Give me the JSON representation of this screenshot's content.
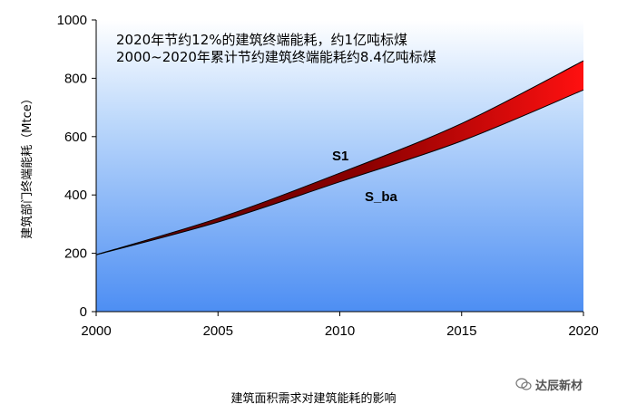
{
  "chart_data": {
    "type": "area",
    "title": "",
    "xlabel": "",
    "ylabel": "建筑部门终端能耗（Mtce）",
    "x": [
      2000,
      2005,
      2010,
      2015,
      2020
    ],
    "xlim": [
      2000,
      2020
    ],
    "ylim": [
      0,
      1000
    ],
    "xticks": [
      "2000",
      "2005",
      "2010",
      "2015",
      "2020"
    ],
    "yticks": [
      "0",
      "200",
      "400",
      "600",
      "800",
      "1000"
    ],
    "series": [
      {
        "name": "S1",
        "values": [
          195,
          320,
          475,
          645,
          860
        ]
      },
      {
        "name": "S_ba",
        "values": [
          195,
          307,
          445,
          585,
          760
        ]
      }
    ],
    "annotations": [
      "2020年节约12%的建筑终端能耗，约1亿吨标煤",
      "2000~2020年累计节约建筑终端能耗约8.4亿吨标煤"
    ],
    "grid": false,
    "colors": {
      "band": "#e00000",
      "band_dark": "#8b0000",
      "bg_top": "#ffffff",
      "bg_bottom": "#4a90f0"
    }
  },
  "caption": "建筑面积需求对建筑能耗的影响",
  "watermark": {
    "icon": "wechat-icon",
    "text": "达辰新材"
  }
}
